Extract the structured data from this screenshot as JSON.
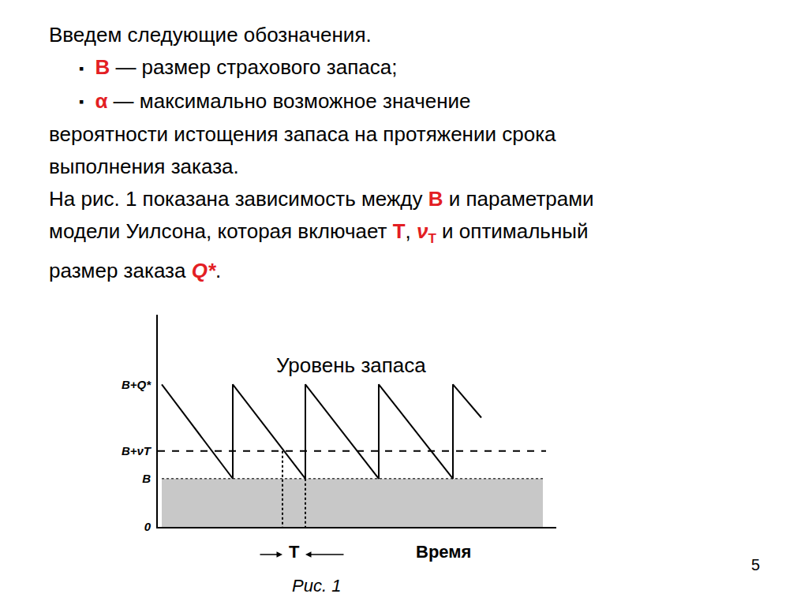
{
  "slide": {
    "lines": [
      {
        "runs": [
          {
            "text": "Введем следующие обозначения."
          }
        ]
      },
      {
        "bullet": "▪",
        "runs": [
          {
            "text": "B",
            "color": "#e31e24",
            "style": "bold"
          },
          {
            "text": " — размер страхового запаса;"
          }
        ]
      },
      {
        "bullet": "▪",
        "runs": [
          {
            "text": "α",
            "color": "#e31e24",
            "style": "bold"
          },
          {
            "text": " — максимально возможное значение"
          }
        ]
      },
      {
        "runs": [
          {
            "text": "вероятности истощения запаса на протяжении срока"
          }
        ]
      },
      {
        "runs": [
          {
            "text": "выполнения заказа."
          }
        ]
      },
      {
        "runs": [
          {
            "text": "На рис. 1 показана зависимость между "
          },
          {
            "text": "B",
            "color": "#e31e24",
            "style": "bold"
          },
          {
            "text": " и параметрами"
          }
        ]
      },
      {
        "runs": [
          {
            "text": "модели Уилсона, которая включает "
          },
          {
            "text": "T",
            "color": "#e31e24",
            "style": "bold"
          },
          {
            "text": ", "
          },
          {
            "text": "ν",
            "color": "#e31e24",
            "style": "bolditalic"
          },
          {
            "text": "T",
            "color": "#e31e24",
            "style": "bold",
            "sub": true
          },
          {
            "text": " и оптимальный"
          }
        ]
      },
      {
        "runs": [
          {
            "text": "размер заказа "
          },
          {
            "text": "Q*",
            "color": "#e31e24",
            "style": "bolditalic"
          },
          {
            "text": "."
          }
        ]
      }
    ],
    "caption": "Рис. 1",
    "page_number": "5"
  },
  "chart_data": {
    "type": "line",
    "title": "Уровень запаса",
    "x_label": "Время",
    "xlim": [
      0,
      50.5
    ],
    "ylim": [
      0,
      26.8
    ],
    "yticks": [
      0,
      {
        "value": 6.1,
        "label": "B"
      },
      {
        "value": 9.6,
        "label": "B+νT"
      },
      {
        "value": 18,
        "label": "B+Q*"
      }
    ],
    "tick_labels": "y",
    "grid": false,
    "interval": {
      "label": "T",
      "from": 15.8,
      "to": 18.7
    },
    "series": [
      {
        "type": "area",
        "color": "#c8c8c8",
        "line_style": "dotted",
        "x": [
          0.5,
          48.8
        ],
        "values": [
          6.1,
          6.1
        ]
      },
      {
        "type": "line",
        "color": "#000000",
        "line_style": "dashed",
        "x": [
          0,
          49.2
        ],
        "values": [
          9.6,
          9.6
        ]
      },
      {
        "type": "line",
        "color": "#000000",
        "line_style": "dotted",
        "x": [
          15.8,
          15.8
        ],
        "values": [
          9.6,
          0
        ]
      },
      {
        "type": "line",
        "color": "#000000",
        "line_style": "dotted",
        "x": [
          18.7,
          18.7
        ],
        "values": [
          6.1,
          0
        ]
      },
      {
        "type": "line",
        "color": "#000000",
        "line_style": "solid",
        "x": [
          0.5,
          9.5,
          9.5,
          18.7,
          18.7,
          28,
          28,
          37.4,
          37.4,
          41
        ],
        "values": [
          18,
          6.1,
          18,
          6.1,
          18,
          6.1,
          18,
          6.1,
          18,
          13.8
        ]
      }
    ]
  }
}
